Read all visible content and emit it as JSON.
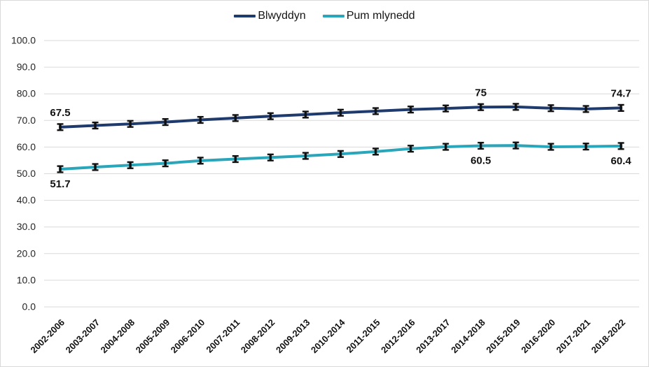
{
  "legend": {
    "items": [
      {
        "label": "Blwyddyn",
        "color": "#1f3b6d"
      },
      {
        "label": "Pum mlynedd",
        "color": "#2aa6bb"
      }
    ]
  },
  "chart_data": {
    "type": "line",
    "title": "",
    "xlabel": "",
    "ylabel": "",
    "ylim": [
      0,
      100
    ],
    "yticks": [
      "100.0",
      "90.0",
      "80.0",
      "70.0",
      "60.0",
      "50.0",
      "40.0",
      "30.0",
      "20.0",
      "10.0",
      "0.0"
    ],
    "grid": true,
    "legend_position": "top",
    "marker": "error-bar",
    "marker_color": "#111111",
    "gridline_color": "#d9d9d9",
    "categories": [
      "2002-2006",
      "2003-2007",
      "2004-2008",
      "2005-2009",
      "2006-2010",
      "2007-2011",
      "2008-2012",
      "2009-2013",
      "2010-2014",
      "2011-2015",
      "2012-2016",
      "2013-2017",
      "2014-2018",
      "2015-2019",
      "2016-2020",
      "2017-2021",
      "2018-2022"
    ],
    "series": [
      {
        "name": "Blwyddyn",
        "color": "#1f3b6d",
        "values": [
          67.5,
          68.1,
          68.7,
          69.4,
          70.2,
          70.9,
          71.6,
          72.2,
          72.9,
          73.5,
          74.1,
          74.5,
          75.0,
          75.1,
          74.6,
          74.3,
          74.7
        ],
        "label_position": "above",
        "point_labels": [
          {
            "index": 0,
            "text": "67.5"
          },
          {
            "index": 12,
            "text": "75"
          },
          {
            "index": 16,
            "text": "74.7"
          }
        ]
      },
      {
        "name": "Pum mlynedd",
        "color": "#2aa6bb",
        "values": [
          51.7,
          52.5,
          53.2,
          53.9,
          54.9,
          55.5,
          56.1,
          56.7,
          57.4,
          58.3,
          59.4,
          60.1,
          60.5,
          60.6,
          60.1,
          60.2,
          60.4
        ],
        "label_position": "below",
        "point_labels": [
          {
            "index": 0,
            "text": "51.7"
          },
          {
            "index": 12,
            "text": "60.5"
          },
          {
            "index": 16,
            "text": "60.4"
          }
        ]
      }
    ]
  }
}
